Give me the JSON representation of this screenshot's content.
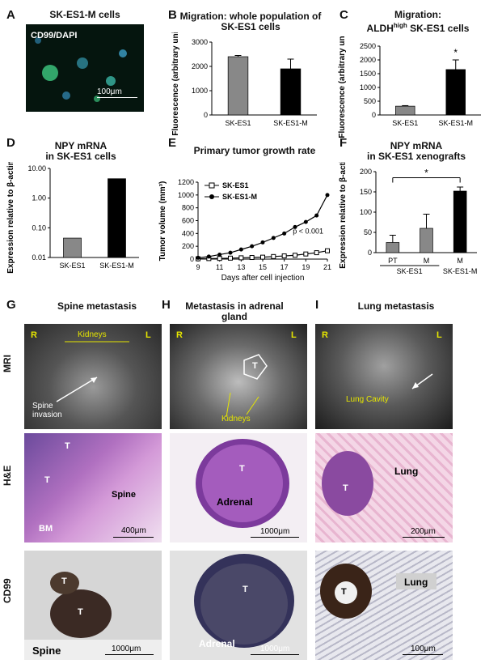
{
  "panels": {
    "A": {
      "letter": "A",
      "title": "SK-ES1-M cells",
      "stain": "CD99/DAPI",
      "scale": "100μm"
    },
    "B": {
      "letter": "B",
      "title": "Migration: whole population of SK-ES1 cells"
    },
    "C": {
      "letter": "C",
      "title_1": "Migration:",
      "title_2": "ALDH",
      "title_sup": "high",
      "title_3": " SK-ES1 cells"
    },
    "D": {
      "letter": "D",
      "title_1": "NPY mRNA",
      "title_2": "in SK-ES1 cells"
    },
    "E": {
      "letter": "E",
      "title": "Primary tumor growth rate"
    },
    "F": {
      "letter": "F",
      "title_1": "NPY mRNA",
      "title_2": "in SK-ES1 xenografts"
    },
    "G": {
      "letter": "G",
      "title": "Spine metastasis",
      "mri_R": "R",
      "mri_L": "L",
      "kidneys": "Kidneys",
      "invasion": "Spine\ninvasion",
      "he_T1": "T",
      "he_T2": "T",
      "he_spine": "Spine",
      "he_bm": "BM",
      "he_scale": "400μm",
      "cd_T1": "T",
      "cd_T2": "T",
      "cd_spine": "Spine",
      "cd_scale": "1000μm"
    },
    "H": {
      "letter": "H",
      "title": "Metastasis in adrenal gland",
      "mri_R": "R",
      "mri_L": "L",
      "mri_T": "T",
      "kidneys": "Kidneys",
      "he_T": "T",
      "he_adrenal": "Adrenal",
      "he_scale": "1000μm",
      "cd_T": "T",
      "cd_adrenal": "Adrenal",
      "cd_scale": "1000μm"
    },
    "I": {
      "letter": "I",
      "title": "Lung metastasis",
      "mri_R": "R",
      "mri_L": "L",
      "cavity": "Lung Cavity",
      "he_T": "T",
      "he_lung": "Lung",
      "he_scale": "200μm",
      "cd_T": "T",
      "cd_lung": "Lung",
      "cd_scale": "100μm"
    }
  },
  "row_labels": {
    "mri": "MRI",
    "he": "H&E",
    "cd99": "CD99"
  },
  "chart_data": [
    {
      "id": "B",
      "type": "bar",
      "categories": [
        "SK-ES1",
        "SK-ES1-M"
      ],
      "values": [
        2400,
        1900
      ],
      "errors": [
        50,
        400
      ],
      "colors": [
        "#888888",
        "#000000"
      ],
      "ylabel": "Fluorescence (arbitrary units)",
      "ylim": [
        0,
        3000
      ],
      "yticks": [
        0,
        1000,
        2000,
        3000
      ]
    },
    {
      "id": "C",
      "type": "bar",
      "categories": [
        "SK-ES1",
        "SK-ES1-M"
      ],
      "values": [
        320,
        1650
      ],
      "errors": [
        20,
        350
      ],
      "colors": [
        "#888888",
        "#000000"
      ],
      "ylabel": "Fluorescence (arbitrary units)",
      "ylim": [
        0,
        2500
      ],
      "yticks": [
        0,
        500,
        1000,
        1500,
        2000,
        2500
      ],
      "annotation": "*"
    },
    {
      "id": "D",
      "type": "bar",
      "scale": "log",
      "categories": [
        "SK-ES1",
        "SK-ES1-M"
      ],
      "values": [
        0.045,
        4.5
      ],
      "colors": [
        "#888888",
        "#000000"
      ],
      "ylabel": "Expression relative to β-actin",
      "ylim": [
        0.01,
        10
      ],
      "yticks": [
        "0.01",
        "0.10",
        "1.00",
        "10.00"
      ]
    },
    {
      "id": "E",
      "type": "line",
      "xlabel": "Days after cell injection",
      "ylabel": "Tumor volume (mm³)",
      "xticks": [
        9,
        11,
        13,
        15,
        17,
        19,
        21
      ],
      "yticks": [
        0,
        200,
        400,
        600,
        800,
        1000,
        1200
      ],
      "xlim": [
        9,
        21
      ],
      "ylim": [
        0,
        1200
      ],
      "annotation": "p < 0.001",
      "series": [
        {
          "name": "SK-ES1",
          "marker": "square",
          "x": [
            9,
            10,
            11,
            12,
            13,
            14,
            15,
            16,
            17,
            18,
            19,
            20,
            21
          ],
          "y": [
            5,
            8,
            10,
            15,
            20,
            25,
            30,
            40,
            50,
            60,
            80,
            100,
            130
          ]
        },
        {
          "name": "SK-ES1-M",
          "marker": "circle",
          "x": [
            9,
            10,
            11,
            12,
            13,
            14,
            15,
            16,
            17,
            18,
            19,
            20,
            21
          ],
          "y": [
            20,
            40,
            70,
            100,
            150,
            200,
            260,
            330,
            400,
            500,
            580,
            680,
            1000
          ]
        }
      ]
    },
    {
      "id": "F",
      "type": "bar",
      "categories": [
        "PT",
        "M",
        "M"
      ],
      "groups": [
        "SK-ES1",
        "SK-ES1-M"
      ],
      "values": [
        25,
        60,
        152
      ],
      "errors": [
        18,
        35,
        10
      ],
      "colors": [
        "#888888",
        "#888888",
        "#000000"
      ],
      "ylabel": "Expression relative to β-actin",
      "ylim": [
        0,
        200
      ],
      "yticks": [
        0,
        50,
        100,
        150,
        200
      ],
      "annotation": "*"
    }
  ]
}
